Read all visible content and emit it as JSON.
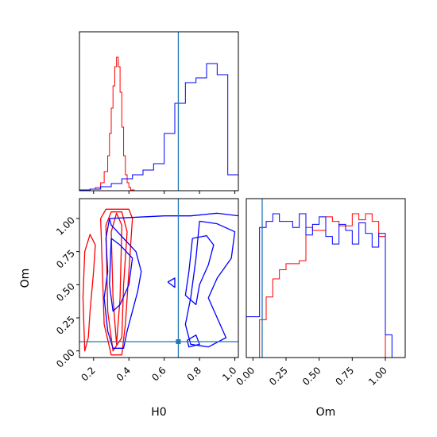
{
  "chart_data": {
    "type": "corner",
    "params": [
      "H0",
      "Om"
    ],
    "truth": {
      "H0": 0.68,
      "Om": 0.07
    },
    "colors": {
      "sample_a": "#ff0000",
      "sample_b": "#0000ff",
      "truth": "#1f77b4"
    },
    "panels": [
      {
        "id": "h0-marginal",
        "type": "histogram",
        "param": "H0",
        "xlim": [
          0.12,
          1.02
        ],
        "xticks": [
          0.2,
          0.4,
          0.6,
          0.8,
          1.0
        ],
        "tick_labels_shown": false,
        "series": [
          {
            "color": "#ff0000",
            "bins": [
              0.15,
              0.18,
              0.21,
              0.24,
              0.26,
              0.28,
              0.29,
              0.3,
              0.31,
              0.32,
              0.33,
              0.34,
              0.35,
              0.36,
              0.37,
              0.38,
              0.39,
              0.4,
              0.41,
              0.43
            ],
            "heights": [
              0.3,
              1,
              2,
              5,
              12,
              22,
              36,
              52,
              66,
              78,
              84,
              78,
              62,
              40,
              22,
              10,
              5,
              2,
              0.5
            ],
            "hmax": 100
          },
          {
            "color": "#0000ff",
            "bins": [
              0.12,
              0.18,
              0.24,
              0.3,
              0.36,
              0.42,
              0.48,
              0.54,
              0.6,
              0.66,
              0.72,
              0.78,
              0.84,
              0.9,
              0.96,
              1.02
            ],
            "heights": [
              0.5,
              1,
              2.5,
              4.5,
              7.5,
              10,
              13,
              17,
              36,
              55,
              68,
              71,
              80,
              73,
              10
            ],
            "hmax": 100
          }
        ]
      },
      {
        "id": "om-marginal",
        "type": "histogram",
        "param": "Om",
        "xlim": [
          -0.05,
          1.15
        ],
        "xticks": [
          0.0,
          0.25,
          0.5,
          0.75,
          1.0
        ],
        "xtick_labels": [
          "0.00",
          "0.25",
          "0.50",
          "0.75",
          "1.00"
        ],
        "xlabel": "Om",
        "series": [
          {
            "color": "#ff0000",
            "bins": [
              -0.05,
              0.0,
              0.05,
              0.1,
              0.15,
              0.2,
              0.25,
              0.3,
              0.35,
              0.4,
              0.45,
              0.5,
              0.55,
              0.6,
              0.65,
              0.7,
              0.75,
              0.8,
              0.85,
              0.9,
              0.95,
              1.0,
              1.05,
              1.1
            ],
            "heights": [
              0,
              0,
              25,
              40,
              52,
              58,
              62,
              62,
              64,
              86,
              84,
              84,
              93,
              90,
              87,
              87,
              95,
              91,
              95,
              90,
              80,
              0,
              0
            ],
            "hmax": 105
          },
          {
            "color": "#0000ff",
            "bins": [
              -0.05,
              0.0,
              0.05,
              0.1,
              0.15,
              0.2,
              0.25,
              0.3,
              0.35,
              0.4,
              0.45,
              0.5,
              0.55,
              0.6,
              0.65,
              0.7,
              0.75,
              0.8,
              0.85,
              0.9,
              0.95,
              1.0,
              1.05,
              1.1
            ],
            "heights": [
              27,
              27,
              86,
              90,
              95,
              90,
              90,
              86,
              95,
              81,
              88,
              93,
              80,
              75,
              88,
              84,
              75,
              89,
              82,
              73,
              82,
              15,
              0
            ],
            "hmax": 105
          }
        ]
      },
      {
        "id": "h0-om-2d",
        "type": "contour",
        "x_param": "H0",
        "y_param": "Om",
        "xlim": [
          0.12,
          1.02
        ],
        "ylim": [
          -0.05,
          1.15
        ],
        "xticks": [
          0.2,
          0.4,
          0.6,
          0.8,
          1.0
        ],
        "xtick_labels": [
          "0.2",
          "0.4",
          "0.6",
          "0.8",
          "1.0"
        ],
        "yticks": [
          0.0,
          0.25,
          0.5,
          0.75,
          1.0
        ],
        "ytick_labels": [
          "0.00",
          "0.25",
          "0.50",
          "0.75",
          "1.00"
        ],
        "xlabel": "H0",
        "ylabel": "Om",
        "contours": [
          {
            "color": "#ff0000",
            "points": [
              [
                0.24,
                1.0
              ],
              [
                0.27,
                1.07
              ],
              [
                0.33,
                1.07
              ],
              [
                0.4,
                1.07
              ],
              [
                0.42,
                1.0
              ],
              [
                0.4,
                0.6
              ],
              [
                0.38,
                0.2
              ],
              [
                0.36,
                -0.03
              ],
              [
                0.3,
                -0.03
              ],
              [
                0.26,
                0.2
              ],
              [
                0.25,
                0.6
              ],
              [
                0.24,
                1.0
              ]
            ]
          },
          {
            "color": "#ff0000",
            "points": [
              [
                0.27,
                0.95
              ],
              [
                0.3,
                1.05
              ],
              [
                0.36,
                1.05
              ],
              [
                0.39,
                0.9
              ],
              [
                0.37,
                0.5
              ],
              [
                0.36,
                0.1
              ],
              [
                0.31,
                0.0
              ],
              [
                0.28,
                0.3
              ],
              [
                0.27,
                0.95
              ]
            ]
          },
          {
            "color": "#ff0000",
            "points": [
              [
                0.3,
                0.9
              ],
              [
                0.33,
                1.04
              ],
              [
                0.36,
                0.95
              ],
              [
                0.35,
                0.4
              ],
              [
                0.33,
                0.05
              ],
              [
                0.31,
                0.4
              ],
              [
                0.3,
                0.9
              ]
            ]
          },
          {
            "color": "#ff0000",
            "points": [
              [
                0.15,
                0.75
              ],
              [
                0.18,
                0.88
              ],
              [
                0.21,
                0.8
              ],
              [
                0.2,
                0.6
              ],
              [
                0.18,
                0.3
              ],
              [
                0.17,
                0.1
              ],
              [
                0.15,
                0.0
              ],
              [
                0.14,
                0.4
              ],
              [
                0.15,
                0.75
              ]
            ]
          },
          {
            "color": "#0000ff",
            "points": [
              [
                0.29,
                1.0
              ],
              [
                0.45,
                1.01
              ],
              [
                0.6,
                1.02
              ],
              [
                0.75,
                1.02
              ],
              [
                0.9,
                1.04
              ],
              [
                1.02,
                1.02
              ]
            ]
          },
          {
            "color": "#0000ff",
            "points": [
              [
                0.29,
                1.0
              ],
              [
                0.27,
                0.85
              ],
              [
                0.28,
                0.6
              ],
              [
                0.26,
                0.4
              ],
              [
                0.28,
                0.15
              ],
              [
                0.31,
                0.02
              ],
              [
                0.37,
                0.02
              ],
              [
                0.39,
                0.15
              ],
              [
                0.42,
                0.3
              ],
              [
                0.45,
                0.45
              ],
              [
                0.47,
                0.6
              ],
              [
                0.44,
                0.75
              ],
              [
                0.37,
                0.85
              ],
              [
                0.3,
                0.95
              ],
              [
                0.29,
                1.0
              ]
            ]
          },
          {
            "color": "#0000ff",
            "points": [
              [
                0.3,
                0.85
              ],
              [
                0.35,
                0.8
              ],
              [
                0.42,
                0.7
              ],
              [
                0.4,
                0.5
              ],
              [
                0.35,
                0.35
              ],
              [
                0.31,
                0.3
              ],
              [
                0.29,
                0.5
              ],
              [
                0.3,
                0.85
              ]
            ]
          },
          {
            "color": "#0000ff",
            "points": [
              [
                0.8,
                0.98
              ],
              [
                0.9,
                0.96
              ],
              [
                1.0,
                0.9
              ],
              [
                0.98,
                0.7
              ],
              [
                0.9,
                0.55
              ],
              [
                0.85,
                0.4
              ],
              [
                0.9,
                0.25
              ],
              [
                0.95,
                0.1
              ],
              [
                0.85,
                0.03
              ],
              [
                0.75,
                0.05
              ],
              [
                0.72,
                0.2
              ],
              [
                0.75,
                0.4
              ],
              [
                0.78,
                0.7
              ],
              [
                0.8,
                0.98
              ]
            ]
          },
          {
            "color": "#0000ff",
            "points": [
              [
                0.76,
                0.85
              ],
              [
                0.84,
                0.87
              ],
              [
                0.88,
                0.8
              ],
              [
                0.85,
                0.65
              ],
              [
                0.8,
                0.5
              ],
              [
                0.78,
                0.35
              ],
              [
                0.72,
                0.42
              ],
              [
                0.74,
                0.6
              ],
              [
                0.76,
                0.85
              ]
            ]
          },
          {
            "color": "#0000ff",
            "points": [
              [
                0.62,
                0.52
              ],
              [
                0.66,
                0.55
              ],
              [
                0.66,
                0.48
              ],
              [
                0.62,
                0.52
              ]
            ]
          },
          {
            "color": "#0000ff",
            "points": [
              [
                0.73,
                0.08
              ],
              [
                0.78,
                0.12
              ],
              [
                0.8,
                0.05
              ],
              [
                0.74,
                0.03
              ],
              [
                0.73,
                0.08
              ]
            ]
          }
        ],
        "truth_marker": {
          "x": 0.68,
          "y": 0.07,
          "color": "#1f77b4"
        }
      }
    ]
  }
}
